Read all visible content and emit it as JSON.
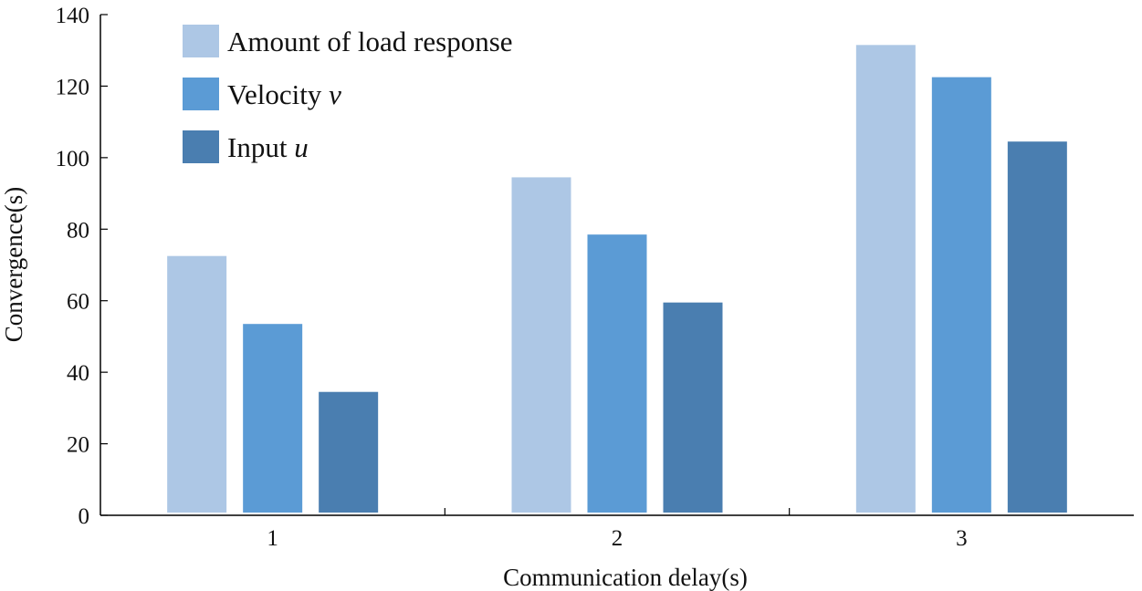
{
  "chart_data": {
    "type": "bar",
    "title": "",
    "xlabel": "Communication delay(s)",
    "ylabel": "Convergence(s)",
    "categories": [
      "1",
      "2",
      "3"
    ],
    "ylim": [
      0,
      140
    ],
    "yticks": [
      0,
      20,
      40,
      60,
      80,
      100,
      120,
      140
    ],
    "grid": false,
    "legend_position": "top-left",
    "series": [
      {
        "name": "Amount of load response",
        "name_main": "Amount of load response",
        "name_var": "",
        "color": "#adc7e5",
        "values": [
          72.5,
          94.5,
          131.5
        ]
      },
      {
        "name": "Velocity v",
        "name_main": "Velocity ",
        "name_var": "v",
        "color": "#5b9bd5",
        "values": [
          53.5,
          78.5,
          122.5
        ]
      },
      {
        "name": "Input u",
        "name_main": "Input ",
        "name_var": "u",
        "color": "#4a7eb0",
        "values": [
          34.5,
          59.5,
          104.5
        ]
      }
    ]
  }
}
